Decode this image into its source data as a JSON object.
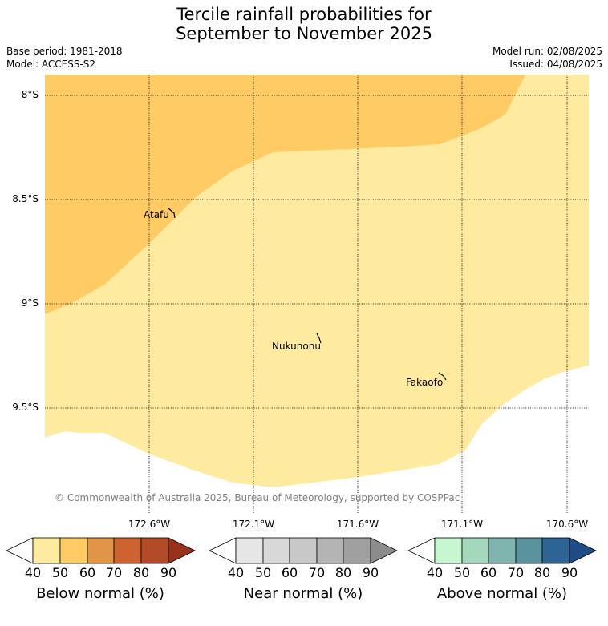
{
  "title_line1": "Tercile rainfall probabilities for",
  "title_line2": "September to November 2025",
  "base_period": "Base period: 1981-2018",
  "model": "Model: ACCESS-S2",
  "model_run": "Model run: 02/08/2025",
  "issued": "Issued: 04/08/2025",
  "lat_labels": [
    "8°S",
    "8.5°S",
    "9°S",
    "9.5°S"
  ],
  "lon_labels_upper": [
    "172.6°W",
    "171.1°W"
  ],
  "lon_labels_lower": [
    "172.1°W",
    "171.6°W",
    "170.6°W"
  ],
  "places": [
    "Atafu",
    "Nukunonu",
    "Fakaofo"
  ],
  "copyright": "© Commonwealth of Australia 2025, Bureau of Meteorology, supported by COSPPac",
  "colors": {
    "below_50_60": "#fecb64",
    "below_40_50": "#feeba0",
    "land": "#000000"
  },
  "colorbars": [
    {
      "label": "Below normal (%)",
      "ticks": [
        "40",
        "50",
        "60",
        "70",
        "80",
        "90"
      ],
      "colors": [
        "#feeba0",
        "#fecb64",
        "#e09548",
        "#cd6331",
        "#b24c28",
        "#98321c"
      ]
    },
    {
      "label": "Near normal (%)",
      "ticks": [
        "40",
        "50",
        "60",
        "70",
        "80",
        "90"
      ],
      "colors": [
        "#e6e6e6",
        "#d8d8d8",
        "#c8c8c8",
        "#b4b4b4",
        "#a0a0a0",
        "#8c8c8c"
      ]
    },
    {
      "label": "Above normal (%)",
      "ticks": [
        "40",
        "50",
        "60",
        "70",
        "80",
        "90"
      ],
      "colors": [
        "#c6f7d0",
        "#a4d7bc",
        "#7fb5ae",
        "#5a929e",
        "#2e6494",
        "#1e4c86"
      ]
    }
  ]
}
